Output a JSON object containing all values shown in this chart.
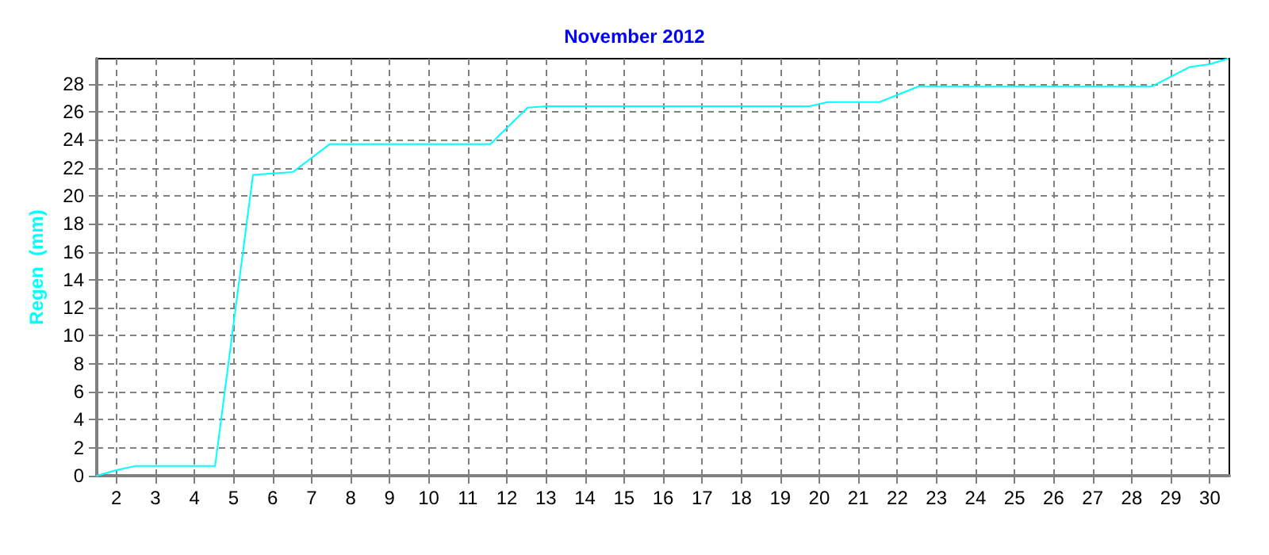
{
  "chart_data": {
    "type": "line",
    "title": "November 2012",
    "ylabel": "Regen  (mm)",
    "series": [
      {
        "color": "#00ffff",
        "x": [
          1.5,
          2.0,
          2.5,
          4.53,
          5.5,
          6.52,
          7.47,
          11.58,
          12.53,
          13.03,
          19.75,
          20.22,
          21.54,
          22.53,
          28.5,
          29.48,
          29.99,
          30.46
        ],
        "values": [
          0,
          0.4,
          0.7,
          0.7,
          21.5,
          21.7,
          23.7,
          23.7,
          26.3,
          26.4,
          26.4,
          26.7,
          26.7,
          27.8,
          27.8,
          29.2,
          29.4,
          29.8
        ]
      }
    ],
    "xlim": [
      1.5,
      30.5
    ],
    "xticks": [
      2,
      3,
      4,
      5,
      6,
      7,
      8,
      9,
      10,
      11,
      12,
      13,
      14,
      15,
      16,
      17,
      18,
      19,
      20,
      21,
      22,
      23,
      24,
      25,
      26,
      27,
      28,
      29,
      30
    ],
    "ylim": [
      0,
      29.8
    ],
    "yticks": [
      0,
      2,
      4,
      6,
      8,
      10,
      12,
      14,
      16,
      18,
      20,
      22,
      24,
      26,
      28
    ],
    "grid": true,
    "marker": "none",
    "line_style": "solid"
  }
}
